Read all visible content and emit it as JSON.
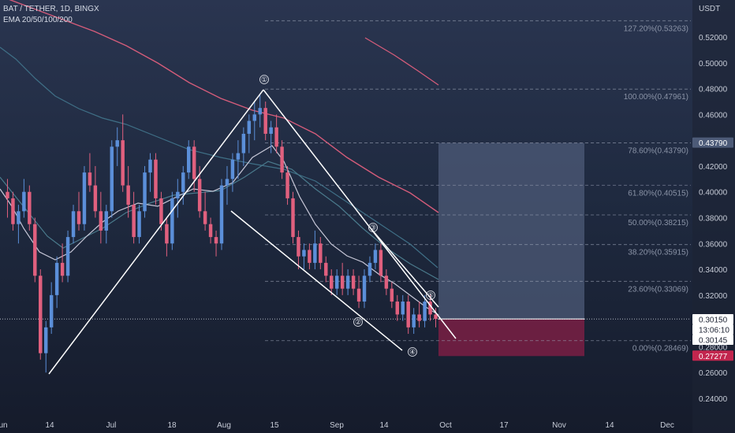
{
  "header": {
    "title": "BAT / TETHER, 1D, BINGX",
    "indicators": "EMA 20/50/100/200"
  },
  "axis": {
    "currency": "USDT",
    "y_ticks": [
      "0.52000",
      "0.50000",
      "0.48000",
      "0.46000",
      "0.44000",
      "0.42000",
      "0.40000",
      "0.38000",
      "0.36000",
      "0.34000",
      "0.32000",
      "0.30000",
      "0.28000",
      "0.26000",
      "0.24000"
    ],
    "x_ticks": [
      "un",
      "14",
      "Jul",
      "18",
      "Aug",
      "15",
      "Sep",
      "14",
      "Oct",
      "17",
      "Nov",
      "14",
      "Dec"
    ]
  },
  "fib_levels": [
    {
      "label": "127.20%(0.53263)",
      "price": 0.53263
    },
    {
      "label": "100.00%(0.47961)",
      "price": 0.47961
    },
    {
      "label": "78.60%(0.43790)",
      "price": 0.4379
    },
    {
      "label": "61.80%(0.40515)",
      "price": 0.40515
    },
    {
      "label": "50.00%(0.38215)",
      "price": 0.38215
    },
    {
      "label": "38.20%(0.35915)",
      "price": 0.35915
    },
    {
      "label": "23.60%(0.33069)",
      "price": 0.33069
    },
    {
      "label": "0.00%(0.28469)",
      "price": 0.28469
    }
  ],
  "price_tags": {
    "target": "0.43790",
    "last": "0.30150",
    "countdown": "13:06:10",
    "cursor": "0.30145",
    "stop": "0.27277"
  },
  "wave_labels": [
    "①",
    "②",
    "③",
    "④",
    "⑤"
  ],
  "colors": {
    "up": "#5b8fd9",
    "down": "#e0607e",
    "ema20": "#c8c8d8",
    "ema50": "#4a7a8c",
    "ema100": "#3f6f86",
    "ema200": "#d45c7a",
    "target_zone": "#4d5b78",
    "stop_zone": "#7a1f44",
    "stop_tag": "#c2264e"
  },
  "chart_data": {
    "type": "candlestick",
    "title": "BAT / TETHER, 1D, BINGX",
    "ylabel": "USDT",
    "ylim": [
      0.23,
      0.545
    ],
    "y_scale": "linear",
    "grid": false,
    "series": [
      {
        "name": "EMA 20",
        "role": "ema"
      },
      {
        "name": "EMA 50",
        "role": "ema"
      },
      {
        "name": "EMA 100",
        "role": "ema"
      },
      {
        "name": "EMA 200",
        "role": "ema"
      }
    ],
    "trade_setup": {
      "entry": 0.3015,
      "target": 0.4379,
      "stop": 0.27277
    },
    "price_path": [
      [
        0.4,
        0.41,
        0.38,
        0.395
      ],
      [
        0.395,
        0.4,
        0.37,
        0.375
      ],
      [
        0.375,
        0.39,
        0.36,
        0.385
      ],
      [
        0.385,
        0.41,
        0.38,
        0.4
      ],
      [
        0.4,
        0.405,
        0.37,
        0.375
      ],
      [
        0.375,
        0.38,
        0.33,
        0.335
      ],
      [
        0.335,
        0.34,
        0.27,
        0.275
      ],
      [
        0.275,
        0.3,
        0.26,
        0.295
      ],
      [
        0.295,
        0.33,
        0.29,
        0.32
      ],
      [
        0.32,
        0.35,
        0.31,
        0.345
      ],
      [
        0.345,
        0.36,
        0.33,
        0.335
      ],
      [
        0.335,
        0.37,
        0.33,
        0.365
      ],
      [
        0.365,
        0.39,
        0.36,
        0.385
      ],
      [
        0.385,
        0.4,
        0.37,
        0.375
      ],
      [
        0.375,
        0.42,
        0.37,
        0.415
      ],
      [
        0.415,
        0.43,
        0.4,
        0.405
      ],
      [
        0.405,
        0.42,
        0.38,
        0.385
      ],
      [
        0.385,
        0.4,
        0.36,
        0.37
      ],
      [
        0.37,
        0.39,
        0.36,
        0.385
      ],
      [
        0.385,
        0.44,
        0.38,
        0.435
      ],
      [
        0.435,
        0.45,
        0.42,
        0.44
      ],
      [
        0.44,
        0.46,
        0.4,
        0.405
      ],
      [
        0.405,
        0.42,
        0.38,
        0.39
      ],
      [
        0.39,
        0.4,
        0.36,
        0.365
      ],
      [
        0.365,
        0.39,
        0.36,
        0.385
      ],
      [
        0.385,
        0.42,
        0.38,
        0.415
      ],
      [
        0.415,
        0.43,
        0.4,
        0.425
      ],
      [
        0.425,
        0.43,
        0.39,
        0.395
      ],
      [
        0.395,
        0.4,
        0.37,
        0.375
      ],
      [
        0.375,
        0.38,
        0.35,
        0.36
      ],
      [
        0.36,
        0.4,
        0.355,
        0.395
      ],
      [
        0.395,
        0.41,
        0.38,
        0.4
      ],
      [
        0.4,
        0.42,
        0.39,
        0.415
      ],
      [
        0.415,
        0.44,
        0.41,
        0.435
      ],
      [
        0.435,
        0.44,
        0.4,
        0.41
      ],
      [
        0.41,
        0.42,
        0.38,
        0.385
      ],
      [
        0.385,
        0.4,
        0.37,
        0.375
      ],
      [
        0.375,
        0.38,
        0.36,
        0.365
      ],
      [
        0.365,
        0.37,
        0.35,
        0.36
      ],
      [
        0.36,
        0.41,
        0.355,
        0.405
      ],
      [
        0.405,
        0.42,
        0.39,
        0.41
      ],
      [
        0.41,
        0.43,
        0.4,
        0.425
      ],
      [
        0.425,
        0.44,
        0.41,
        0.43
      ],
      [
        0.43,
        0.45,
        0.42,
        0.445
      ],
      [
        0.445,
        0.46,
        0.43,
        0.455
      ],
      [
        0.455,
        0.47,
        0.44,
        0.46
      ],
      [
        0.46,
        0.475,
        0.45,
        0.465
      ],
      [
        0.465,
        0.47,
        0.44,
        0.445
      ],
      [
        0.445,
        0.455,
        0.43,
        0.45
      ],
      [
        0.45,
        0.46,
        0.43,
        0.435
      ],
      [
        0.435,
        0.44,
        0.41,
        0.415
      ],
      [
        0.415,
        0.42,
        0.39,
        0.395
      ],
      [
        0.395,
        0.4,
        0.36,
        0.365
      ],
      [
        0.365,
        0.37,
        0.34,
        0.35
      ],
      [
        0.35,
        0.36,
        0.34,
        0.355
      ],
      [
        0.355,
        0.36,
        0.34,
        0.345
      ],
      [
        0.345,
        0.37,
        0.34,
        0.36
      ],
      [
        0.36,
        0.365,
        0.34,
        0.345
      ],
      [
        0.345,
        0.35,
        0.33,
        0.335
      ],
      [
        0.335,
        0.34,
        0.32,
        0.325
      ],
      [
        0.325,
        0.34,
        0.32,
        0.335
      ],
      [
        0.335,
        0.345,
        0.32,
        0.325
      ],
      [
        0.325,
        0.34,
        0.32,
        0.335
      ],
      [
        0.335,
        0.34,
        0.32,
        0.325
      ],
      [
        0.325,
        0.335,
        0.31,
        0.315
      ],
      [
        0.315,
        0.34,
        0.31,
        0.335
      ],
      [
        0.335,
        0.35,
        0.33,
        0.345
      ],
      [
        0.345,
        0.36,
        0.34,
        0.355
      ],
      [
        0.355,
        0.36,
        0.33,
        0.335
      ],
      [
        0.335,
        0.34,
        0.32,
        0.325
      ],
      [
        0.325,
        0.33,
        0.31,
        0.315
      ],
      [
        0.315,
        0.32,
        0.3,
        0.305
      ],
      [
        0.305,
        0.32,
        0.3,
        0.315
      ],
      [
        0.315,
        0.32,
        0.29,
        0.295
      ],
      [
        0.295,
        0.31,
        0.29,
        0.305
      ],
      [
        0.305,
        0.315,
        0.295,
        0.3
      ],
      [
        0.3,
        0.32,
        0.295,
        0.315
      ],
      [
        0.315,
        0.32,
        0.3,
        0.305
      ],
      [
        0.305,
        0.31,
        0.295,
        0.3015
      ]
    ]
  }
}
